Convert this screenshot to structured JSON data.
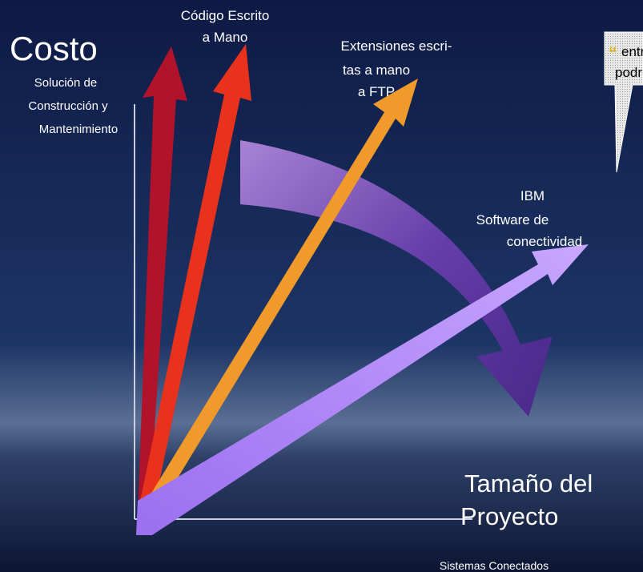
{
  "y_axis": {
    "title": "Costo",
    "subtitle_lines": [
      "Solución de",
      "Construcción y",
      "Mantenimiento"
    ]
  },
  "x_axis": {
    "title_lines": [
      "Tamaño del",
      "Proyecto"
    ],
    "subtitle": "Sistemas Conectados"
  },
  "arrows": [
    {
      "label_lines": [
        "Código Escrito",
        "a Mano"
      ]
    },
    {
      "label_lines": [
        "Extensiones escri-",
        "tas a mano",
        "a FTP"
      ]
    },
    {
      "label_lines": [
        "IBM",
        "Software de",
        "conectividad"
      ]
    }
  ],
  "callout": {
    "quote_mark": "“",
    "lines": [
      "entr",
      "podr"
    ]
  }
}
